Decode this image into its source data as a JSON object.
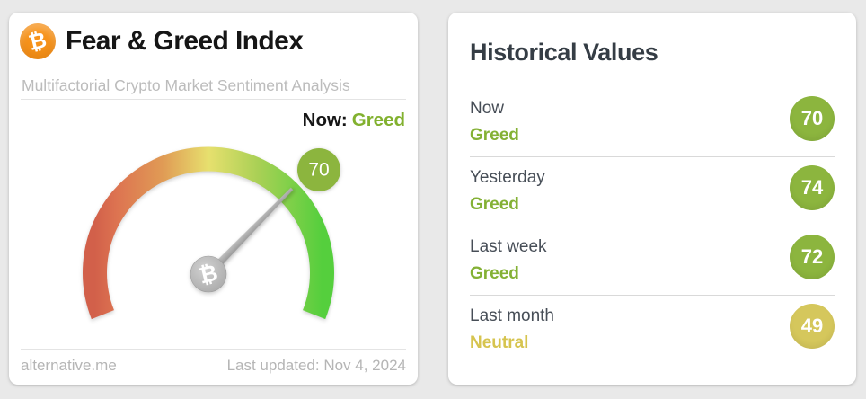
{
  "colors": {
    "page_bg": "#e9e9e9",
    "card_bg": "#ffffff",
    "bitcoin_orange": "#f7931a",
    "accent_green": "#82b12f",
    "circle_green": "#8cb53e",
    "circle_yellow": "#d5c75c",
    "gauge_gradient": [
      "#d2604a",
      "#dd7451",
      "#e09b55",
      "#e7e06e",
      "#a9d055",
      "#55cf3d"
    ],
    "needle_gray": "#a8a8a8"
  },
  "icons": {
    "bitcoin_glyph": "₿"
  },
  "fear_greed_card": {
    "title": "Fear & Greed Index",
    "subtitle": "Multifactorial Crypto Market Sentiment Analysis",
    "now_label": "Now:",
    "now_value": "Greed",
    "footer_left": "alternative.me",
    "footer_right": "Last updated: Nov 4, 2024"
  },
  "historical_card": {
    "title": "Historical Values",
    "rows": [
      {
        "label": "Now",
        "sentiment": "Greed",
        "value": "70",
        "circle_color": "#8cb53e",
        "sentiment_color": "#84b135"
      },
      {
        "label": "Yesterday",
        "sentiment": "Greed",
        "value": "74",
        "circle_color": "#8cb53e",
        "sentiment_color": "#84b135"
      },
      {
        "label": "Last week",
        "sentiment": "Greed",
        "value": "72",
        "circle_color": "#8cb53e",
        "sentiment_color": "#84b135"
      },
      {
        "label": "Last month",
        "sentiment": "Neutral",
        "value": "49",
        "circle_color": "#d5c75c",
        "sentiment_color": "#d6c44f"
      }
    ]
  },
  "chart_data": {
    "type": "gauge",
    "title": "Fear & Greed Index",
    "subtitle": "Multifactorial Crypto Market Sentiment Analysis",
    "value": 70,
    "min": 0,
    "max": 100,
    "classification": "Greed",
    "badge_label": "70",
    "scale": "0 = Extreme Fear (red, left) to 100 = Extreme Greed (green, right)",
    "last_updated": "Nov 4, 2024",
    "historical": [
      {
        "period": "Now",
        "classification": "Greed",
        "value": 70
      },
      {
        "period": "Yesterday",
        "classification": "Greed",
        "value": 74
      },
      {
        "period": "Last week",
        "classification": "Greed",
        "value": 72
      },
      {
        "period": "Last month",
        "classification": "Neutral",
        "value": 49
      }
    ]
  }
}
